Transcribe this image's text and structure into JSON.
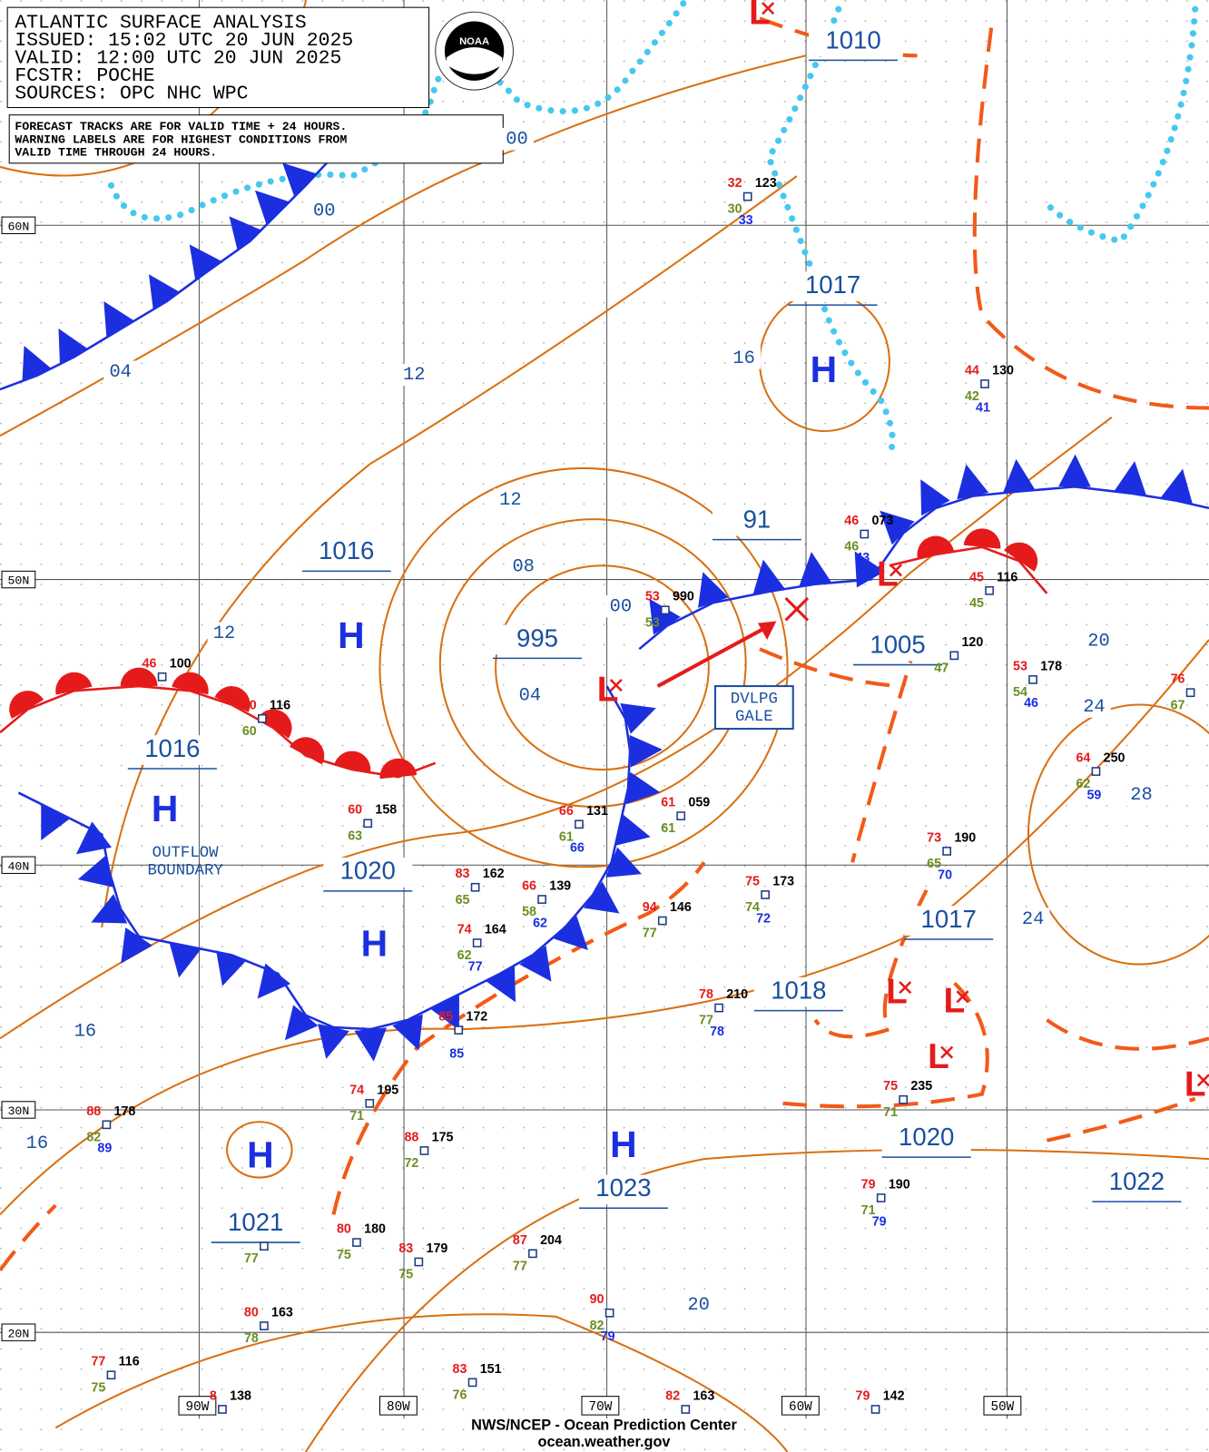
{
  "header": {
    "title": "ATLANTIC SURFACE ANALYSIS",
    "issued": "ISSUED: 15:02 UTC 20 JUN 2025",
    "valid": "VALID:  12:00 UTC 20 JUN 2025",
    "fcstr": "FCSTR:  POCHE",
    "sources": "SOURCES: OPC NHC WPC"
  },
  "notice": [
    "FORECAST TRACKS ARE FOR VALID TIME + 24 HOURS.",
    "WARNING LABELS ARE FOR HIGHEST CONDITIONS FROM",
    "VALID TIME THROUGH 24 HOURS."
  ],
  "logo": "NOAA",
  "lat_labels": [
    "60N",
    "50N",
    "40N",
    "30N",
    "20N"
  ],
  "lon_labels": [
    "90W",
    "80W",
    "70W",
    "60W",
    "50W"
  ],
  "isobar_labels": [
    "00",
    "04",
    "12",
    "12",
    "08",
    "04",
    "00",
    "16",
    "12",
    "16",
    "16",
    "20",
    "24",
    "28",
    "24",
    "20",
    "00"
  ],
  "pressure_labels": [
    "1010",
    "1017",
    "91",
    "1016",
    "995",
    "1005",
    "1016",
    "1020",
    "1017",
    "1018",
    "1020",
    "1023",
    "1022",
    "1021"
  ],
  "highs": [
    "H",
    "H",
    "H",
    "H",
    "H",
    "H"
  ],
  "lows": [
    "L",
    "L",
    "L",
    "L",
    "L",
    "L",
    "L"
  ],
  "annotations": {
    "gale": [
      "DVLPG",
      "GALE"
    ],
    "outflow": [
      "OUTFLOW",
      "BOUNDARY"
    ]
  },
  "stations": [
    {
      "temp": 32,
      "pres": "123",
      "dew": 30,
      "sst": 33
    },
    {
      "temp": 44,
      "pres": "130",
      "dew": 42,
      "sst": 41
    },
    {
      "temp": 46,
      "pres": "073",
      "dew": 46,
      "sst": 43
    },
    {
      "temp": 45,
      "pres": "116",
      "dew": 45
    },
    {
      "pres": "120",
      "dew": 47
    },
    {
      "temp": 53,
      "pres": "178",
      "dew": 54,
      "sst": 46
    },
    {
      "temp": 76,
      "dew": 67
    },
    {
      "temp": 64,
      "pres": "250",
      "dew": 62,
      "sst": 59
    },
    {
      "temp": 73,
      "pres": "190",
      "dew": 65,
      "sst": 70
    },
    {
      "temp": 53,
      "pres": "990",
      "dew": 53
    },
    {
      "temp": 46,
      "pres": "100"
    },
    {
      "temp": 60,
      "pres": "116",
      "dew": 60
    },
    {
      "temp": 60,
      "pres": "158",
      "dew": 63
    },
    {
      "temp": 66,
      "pres": "131",
      "dew": 61,
      "sst": 66
    },
    {
      "temp": 61,
      "pres": "059",
      "dew": 61
    },
    {
      "temp": 66,
      "pres": "139",
      "dew": 58,
      "sst": 62
    },
    {
      "temp": 83,
      "pres": "162",
      "dew": 65
    },
    {
      "temp": 94,
      "pres": "146",
      "dew": 77
    },
    {
      "temp": 75,
      "pres": "173",
      "dew": 74,
      "sst": 72
    },
    {
      "temp": 74,
      "pres": "164",
      "dew": 62,
      "sst": 77
    },
    {
      "temp": 85,
      "pres": "172",
      "sst": 85
    },
    {
      "temp": 78,
      "pres": "210",
      "dew": 77,
      "sst": 78
    },
    {
      "temp": 75,
      "pres": "235",
      "dew": 71
    },
    {
      "temp": 79,
      "pres": "190",
      "dew": 71,
      "sst": 79
    },
    {
      "temp": 74,
      "pres": "195",
      "dew": 71
    },
    {
      "temp": 88,
      "pres": "178",
      "dew": 82,
      "sst": 89
    },
    {
      "temp": 88,
      "pres": "175",
      "dew": 72
    },
    {
      "dew": 77
    },
    {
      "temp": 80,
      "pres": "180",
      "dew": 75
    },
    {
      "temp": 83,
      "pres": "179",
      "dew": 75
    },
    {
      "temp": 87,
      "pres": "204",
      "dew": 77
    },
    {
      "temp": 90,
      "dew": 82,
      "sst": 79
    },
    {
      "temp": 80,
      "pres": "163",
      "dew": 78
    },
    {
      "temp": 77,
      "pres": "116",
      "dew": 75
    },
    {
      "temp": 83,
      "pres": "151",
      "dew": 76
    },
    {
      "temp": 82,
      "pres": "163"
    },
    {
      "temp": 8,
      "pres": "138"
    },
    {
      "temp": 79,
      "pres": "142"
    }
  ],
  "footer": {
    "credit": "NWS/NCEP - Ocean Prediction Center",
    "url": "ocean.weather.gov"
  }
}
